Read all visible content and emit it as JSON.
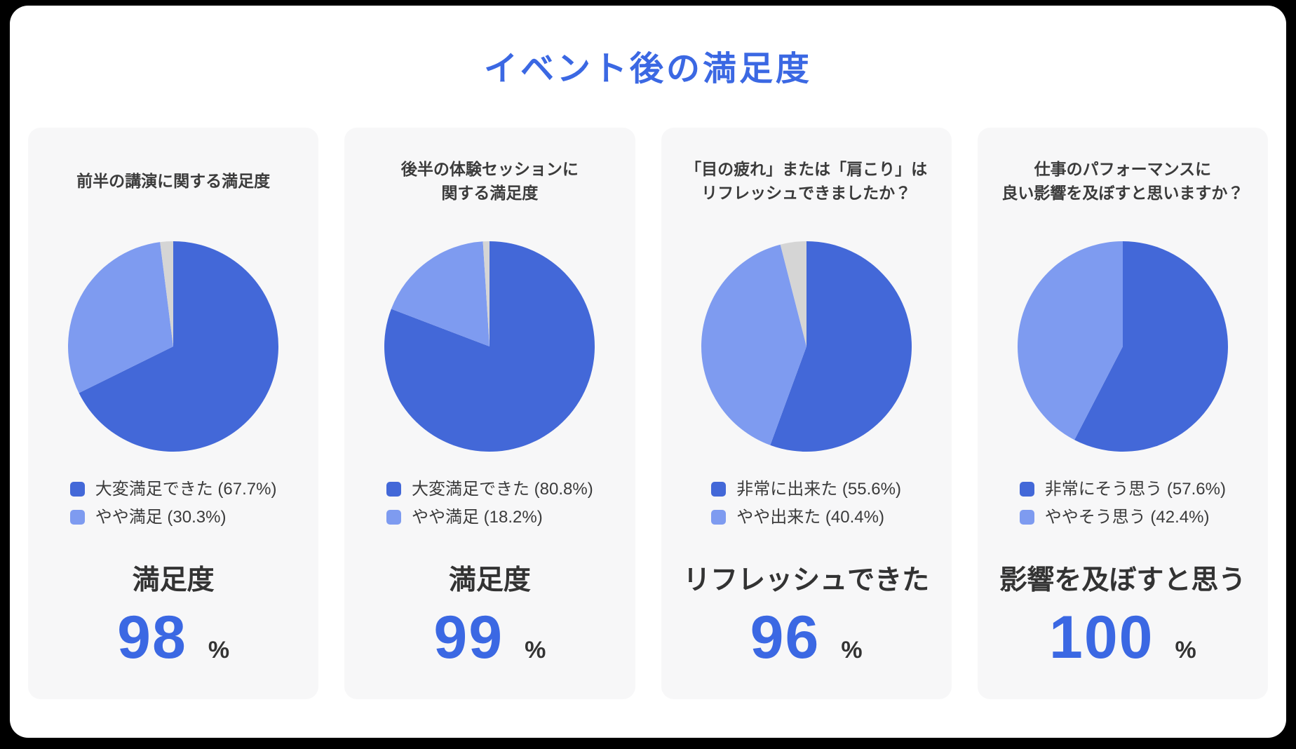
{
  "page_title": "イベント後の満足度",
  "colors": {
    "accent": "#3b68e3",
    "pie_primary": "#4368d8",
    "pie_secondary": "#7e9bf0",
    "pie_rest": "#d5d5d5",
    "text_dark": "#3b3b3b",
    "card_bg": "#f7f7f8",
    "page_bg": "#ffffff"
  },
  "chart_data": [
    {
      "type": "pie",
      "title": "前半の講演に関する満足度",
      "slices": [
        {
          "label": "大変満足できた",
          "value": 67.7,
          "color": "primary",
          "show_in_legend": true
        },
        {
          "label": "やや満足",
          "value": 30.3,
          "color": "secondary",
          "show_in_legend": true
        },
        {
          "label": "",
          "value": 2.0,
          "color": "rest",
          "show_in_legend": false
        }
      ],
      "legend_position": "bottom",
      "result": {
        "label": "満足度",
        "value": "98",
        "unit": "%"
      }
    },
    {
      "type": "pie",
      "title": "後半の体験セッションに\n関する満足度",
      "slices": [
        {
          "label": "大変満足できた",
          "value": 80.8,
          "color": "primary",
          "show_in_legend": true
        },
        {
          "label": "やや満足",
          "value": 18.2,
          "color": "secondary",
          "show_in_legend": true
        },
        {
          "label": "",
          "value": 1.0,
          "color": "rest",
          "show_in_legend": false
        }
      ],
      "legend_position": "bottom",
      "result": {
        "label": "満足度",
        "value": "99",
        "unit": "%"
      }
    },
    {
      "type": "pie",
      "title": "「目の疲れ」または「肩こり」は\nリフレッシュできましたか？",
      "slices": [
        {
          "label": "非常に出来た",
          "value": 55.6,
          "color": "primary",
          "show_in_legend": true
        },
        {
          "label": "やや出来た",
          "value": 40.4,
          "color": "secondary",
          "show_in_legend": true
        },
        {
          "label": "",
          "value": 4.0,
          "color": "rest",
          "show_in_legend": false
        }
      ],
      "legend_position": "bottom",
      "result": {
        "label": "リフレッシュできた",
        "value": "96",
        "unit": "%"
      }
    },
    {
      "type": "pie",
      "title": "仕事のパフォーマンスに\n良い影響を及ぼすと思いますか？",
      "slices": [
        {
          "label": "非常にそう思う",
          "value": 57.6,
          "color": "primary",
          "show_in_legend": true
        },
        {
          "label": "ややそう思う",
          "value": 42.4,
          "color": "secondary",
          "show_in_legend": true
        }
      ],
      "legend_position": "bottom",
      "result": {
        "label": "影響を及ぼすと思う",
        "value": "100",
        "unit": "%"
      }
    }
  ]
}
